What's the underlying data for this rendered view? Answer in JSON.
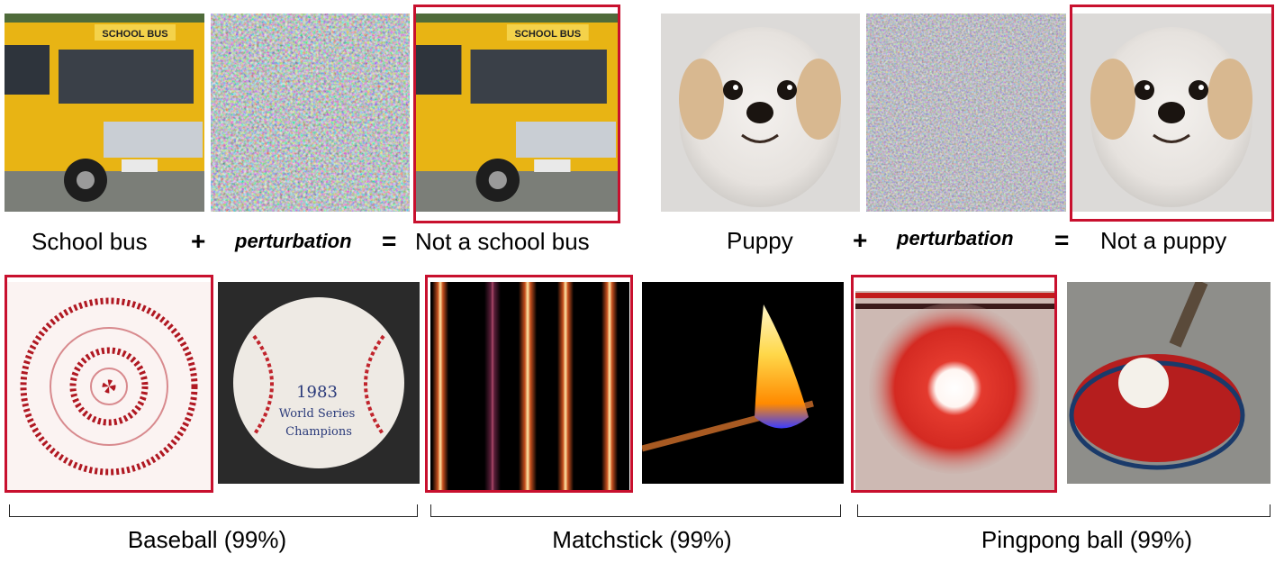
{
  "top_row": {
    "example1": {
      "source_caption": "School bus",
      "plus": "+",
      "perturbation_caption": "perturbation",
      "equals": "=",
      "result_caption": "Not a school bus",
      "bus_sign_text": "SCHOOL BUS"
    },
    "example2": {
      "source_caption": "Puppy",
      "plus": "+",
      "perturbation_caption": "perturbation",
      "equals": "=",
      "result_caption": "Not a puppy"
    }
  },
  "bottom_row": {
    "groups": [
      {
        "caption": "Baseball (99%)",
        "ball_writing": [
          "1983",
          "World Series",
          "Champions"
        ]
      },
      {
        "caption": "Matchstick (99%)"
      },
      {
        "caption": "Pingpong ball (99%)"
      }
    ]
  },
  "colors": {
    "highlight_frame": "#c8102e",
    "bus_yellow": "#e8b414",
    "baseball_stitch": "#b01822",
    "pingpong_red": "#d42a22"
  }
}
